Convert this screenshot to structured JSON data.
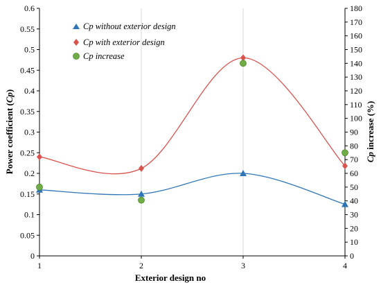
{
  "chart_data": {
    "type": "line",
    "x": [
      1,
      2,
      3,
      4
    ],
    "xlabel": "Exterior design no",
    "ylabel_left": {
      "prefix": "Power coefficient (",
      "italic": "Cp",
      "suffix": ")"
    },
    "ylabel_right": {
      "italic": "Cp",
      "suffix": " increase (%)"
    },
    "xlim": [
      1,
      4
    ],
    "ylim_left": [
      0,
      0.6
    ],
    "ylim_right": [
      0,
      180
    ],
    "x_ticks": [
      "1",
      "2",
      "3",
      "4"
    ],
    "y_left_ticks": [
      "0",
      "0.05",
      "0.1",
      "0.15",
      "0.2",
      "0.25",
      "0.3",
      "0.35",
      "0.4",
      "0.45",
      "0.5",
      "0.55",
      "0.6"
    ],
    "y_right_ticks": [
      "0",
      "10",
      "20",
      "30",
      "40",
      "50",
      "60",
      "70",
      "80",
      "90",
      "100",
      "110",
      "120",
      "130",
      "140",
      "150",
      "160",
      "170",
      "180"
    ],
    "grid": "vertical",
    "legend_position": "top-left",
    "series": [
      {
        "name": "Cp without exterior design",
        "axis": "left",
        "marker": "triangle",
        "color": "#2e75b6",
        "smooth_line": true,
        "values": [
          0.16,
          0.15,
          0.2,
          0.125
        ]
      },
      {
        "name": "Cp with exterior design",
        "axis": "left",
        "marker": "diamond",
        "color": "#d9534f",
        "smooth_line": true,
        "values": [
          0.24,
          0.212,
          0.48,
          0.218
        ]
      },
      {
        "name": "Cp increase",
        "axis": "right",
        "marker": "circle",
        "color": "#70ad47",
        "smooth_line": false,
        "values": [
          50,
          40.5,
          140,
          75
        ]
      }
    ]
  }
}
